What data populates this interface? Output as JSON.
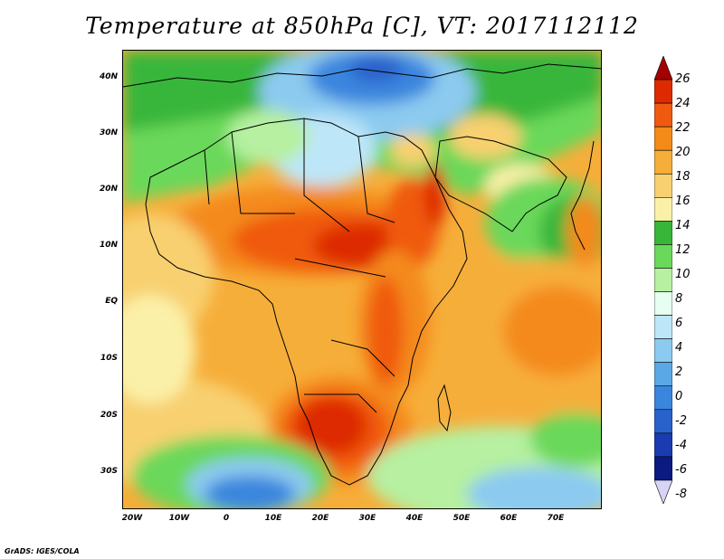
{
  "title": "Temperature at 850hPa [C], VT: 2017112112",
  "footer": "GrADS: IGES/COLA",
  "map": {
    "lat_labels": [
      "40N",
      "30N",
      "20N",
      "10N",
      "EQ",
      "10S",
      "20S",
      "30S"
    ],
    "lon_labels": [
      "20W",
      "10W",
      "0",
      "10E",
      "20E",
      "30E",
      "40E",
      "50E",
      "60E",
      "70E"
    ]
  },
  "colorbar": {
    "levels": [
      "26",
      "24",
      "22",
      "20",
      "18",
      "16",
      "14",
      "12",
      "10",
      "8",
      "6",
      "4",
      "2",
      "0",
      "-2",
      "-4",
      "-6",
      "-8"
    ],
    "colors": [
      "#a50000",
      "#dd2a00",
      "#f05a10",
      "#f48a1a",
      "#f6ae3a",
      "#f8d070",
      "#fbf0a8",
      "#38b63a",
      "#6ad85a",
      "#b6f0a0",
      "#e6fff0",
      "#bde6f8",
      "#8ccaf0",
      "#5aa8e6",
      "#3a86de",
      "#2a62cc",
      "#1a3cb0",
      "#0b1a80",
      "#d8d4f8"
    ]
  }
}
